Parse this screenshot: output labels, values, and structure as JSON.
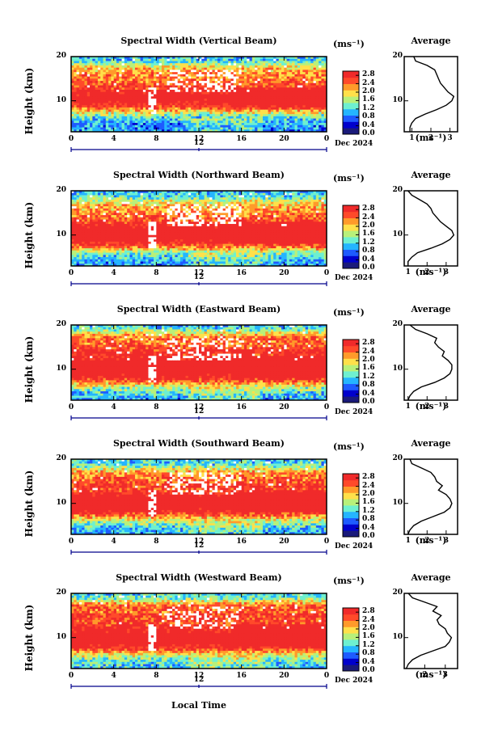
{
  "chart_data": {
    "type": "heatmap",
    "colorbar": {
      "unit": "(ms⁻¹)",
      "ticks": [
        "2.8",
        "2.4",
        "2.0",
        "1.6",
        "1.2",
        "0.8",
        "0.4",
        "0.0"
      ],
      "range": [
        0.0,
        3.0
      ],
      "colors": [
        "#1a1a7a",
        "#0000cc",
        "#1e5bff",
        "#25b5ff",
        "#6ef0d0",
        "#b8f07a",
        "#ffe04a",
        "#ff9a2a",
        "#ff4a2a",
        "#f02a2a"
      ]
    },
    "x_ticks": [
      "0",
      "4",
      "8",
      "12",
      "16",
      "20",
      "0"
    ],
    "x_range": [
      0,
      24
    ],
    "x_label": "Local Time",
    "date_label": "Dec 2024",
    "noon_label": "12",
    "y_ticks": [
      "20",
      "10"
    ],
    "y_range": [
      3,
      20
    ],
    "y_label": "Height (km)",
    "avg_title": "Average",
    "avg_unit": "(ms⁻¹)",
    "panels": [
      {
        "title": "Spectral Width (Vertical Beam)",
        "avg_xticks": [
          "1",
          "2",
          "3"
        ],
        "avg_xrange": [
          0.6,
          3.4
        ],
        "avg_profile": {
          "height": [
            3,
            4,
            5,
            6,
            7,
            8,
            9,
            10,
            11,
            12,
            13,
            14,
            15,
            16,
            17,
            18,
            19,
            20
          ],
          "value": [
            0.9,
            0.9,
            1.0,
            1.2,
            1.7,
            2.3,
            2.8,
            3.1,
            3.2,
            2.9,
            2.7,
            2.5,
            2.4,
            2.3,
            2.2,
            1.8,
            1.2,
            1.1
          ]
        }
      },
      {
        "title": "Spectral Width (Northward Beam)",
        "avg_xticks": [
          "1",
          "2",
          "3"
        ],
        "avg_xrange": [
          0.8,
          3.6
        ],
        "avg_profile": {
          "height": [
            3,
            4,
            5,
            6,
            7,
            8,
            9,
            10,
            11,
            12,
            13,
            14,
            15,
            16,
            17,
            18,
            19,
            20
          ],
          "value": [
            1.0,
            1.0,
            1.2,
            1.5,
            2.2,
            2.8,
            3.2,
            3.4,
            3.3,
            3.0,
            2.7,
            2.5,
            2.3,
            2.2,
            2.0,
            1.6,
            1.2,
            1.0
          ]
        }
      },
      {
        "title": "Spectral Width (Eastward Beam)",
        "avg_xticks": [
          "1",
          "2",
          "3"
        ],
        "avg_xrange": [
          0.8,
          3.6
        ],
        "avg_profile": {
          "height": [
            3,
            4,
            5,
            6,
            7,
            8,
            9,
            10,
            11,
            12,
            13,
            14,
            15,
            16,
            17,
            18,
            19,
            20
          ],
          "value": [
            1.0,
            1.1,
            1.3,
            1.7,
            2.4,
            2.9,
            3.2,
            3.3,
            3.3,
            3.1,
            2.8,
            2.9,
            2.6,
            2.4,
            2.5,
            2.0,
            1.4,
            1.1
          ]
        }
      },
      {
        "title": "Spectral Width (Southward Beam)",
        "avg_xticks": [
          "1",
          "2",
          "3"
        ],
        "avg_xrange": [
          0.8,
          3.6
        ],
        "avg_profile": {
          "height": [
            3,
            4,
            5,
            6,
            7,
            8,
            9,
            10,
            11,
            12,
            13,
            14,
            15,
            16,
            17,
            18,
            19,
            20
          ],
          "value": [
            1.0,
            1.1,
            1.3,
            1.7,
            2.3,
            2.9,
            3.2,
            3.3,
            3.2,
            3.0,
            2.6,
            2.8,
            2.5,
            2.4,
            2.2,
            1.7,
            1.2,
            1.1
          ]
        }
      },
      {
        "title": "Spectral Width (Westward Beam)",
        "avg_xticks": [
          "2",
          "3"
        ],
        "avg_xrange": [
          1.0,
          3.6
        ],
        "avg_profile": {
          "height": [
            3,
            4,
            5,
            6,
            7,
            8,
            9,
            10,
            11,
            12,
            13,
            14,
            15,
            16,
            17,
            18,
            19,
            20
          ],
          "value": [
            1.1,
            1.2,
            1.4,
            1.8,
            2.4,
            3.0,
            3.2,
            3.3,
            3.1,
            3.0,
            2.7,
            2.6,
            2.8,
            2.4,
            2.6,
            2.0,
            1.4,
            1.2
          ]
        }
      }
    ]
  }
}
